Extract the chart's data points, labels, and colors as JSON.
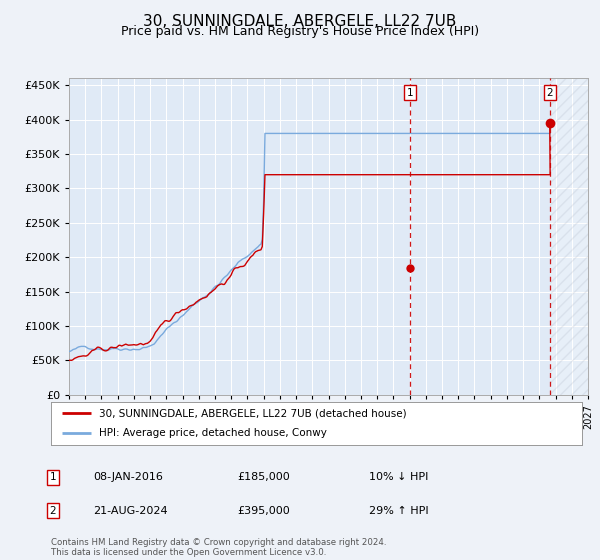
{
  "title": "30, SUNNINGDALE, ABERGELE, LL22 7UB",
  "subtitle": "Price paid vs. HM Land Registry's House Price Index (HPI)",
  "title_fontsize": 11,
  "subtitle_fontsize": 9,
  "ylabel_ticks": [
    "£0",
    "£50K",
    "£100K",
    "£150K",
    "£200K",
    "£250K",
    "£300K",
    "£350K",
    "£400K",
    "£450K"
  ],
  "ytick_values": [
    0,
    50000,
    100000,
    150000,
    200000,
    250000,
    300000,
    350000,
    400000,
    450000
  ],
  "ylim": [
    0,
    460000
  ],
  "xlim_start": 1995.0,
  "xlim_end": 2027.0,
  "hpi_color": "#7aaadd",
  "price_color": "#cc0000",
  "bg_color": "#eef2f8",
  "plot_bg": "#e0eaf6",
  "grid_color": "#ffffff",
  "sale1_year": 2016.03,
  "sale1_price": 185000,
  "sale2_year": 2024.64,
  "sale2_price": 395000,
  "future_start": 2024.64,
  "legend_label_red": "30, SUNNINGDALE, ABERGELE, LL22 7UB (detached house)",
  "legend_label_blue": "HPI: Average price, detached house, Conwy",
  "annotation1_date": "08-JAN-2016",
  "annotation1_price": "£185,000",
  "annotation1_hpi": "10% ↓ HPI",
  "annotation2_date": "21-AUG-2024",
  "annotation2_price": "£395,000",
  "annotation2_hpi": "29% ↑ HPI",
  "footer": "Contains HM Land Registry data © Crown copyright and database right 2024.\nThis data is licensed under the Open Government Licence v3.0."
}
